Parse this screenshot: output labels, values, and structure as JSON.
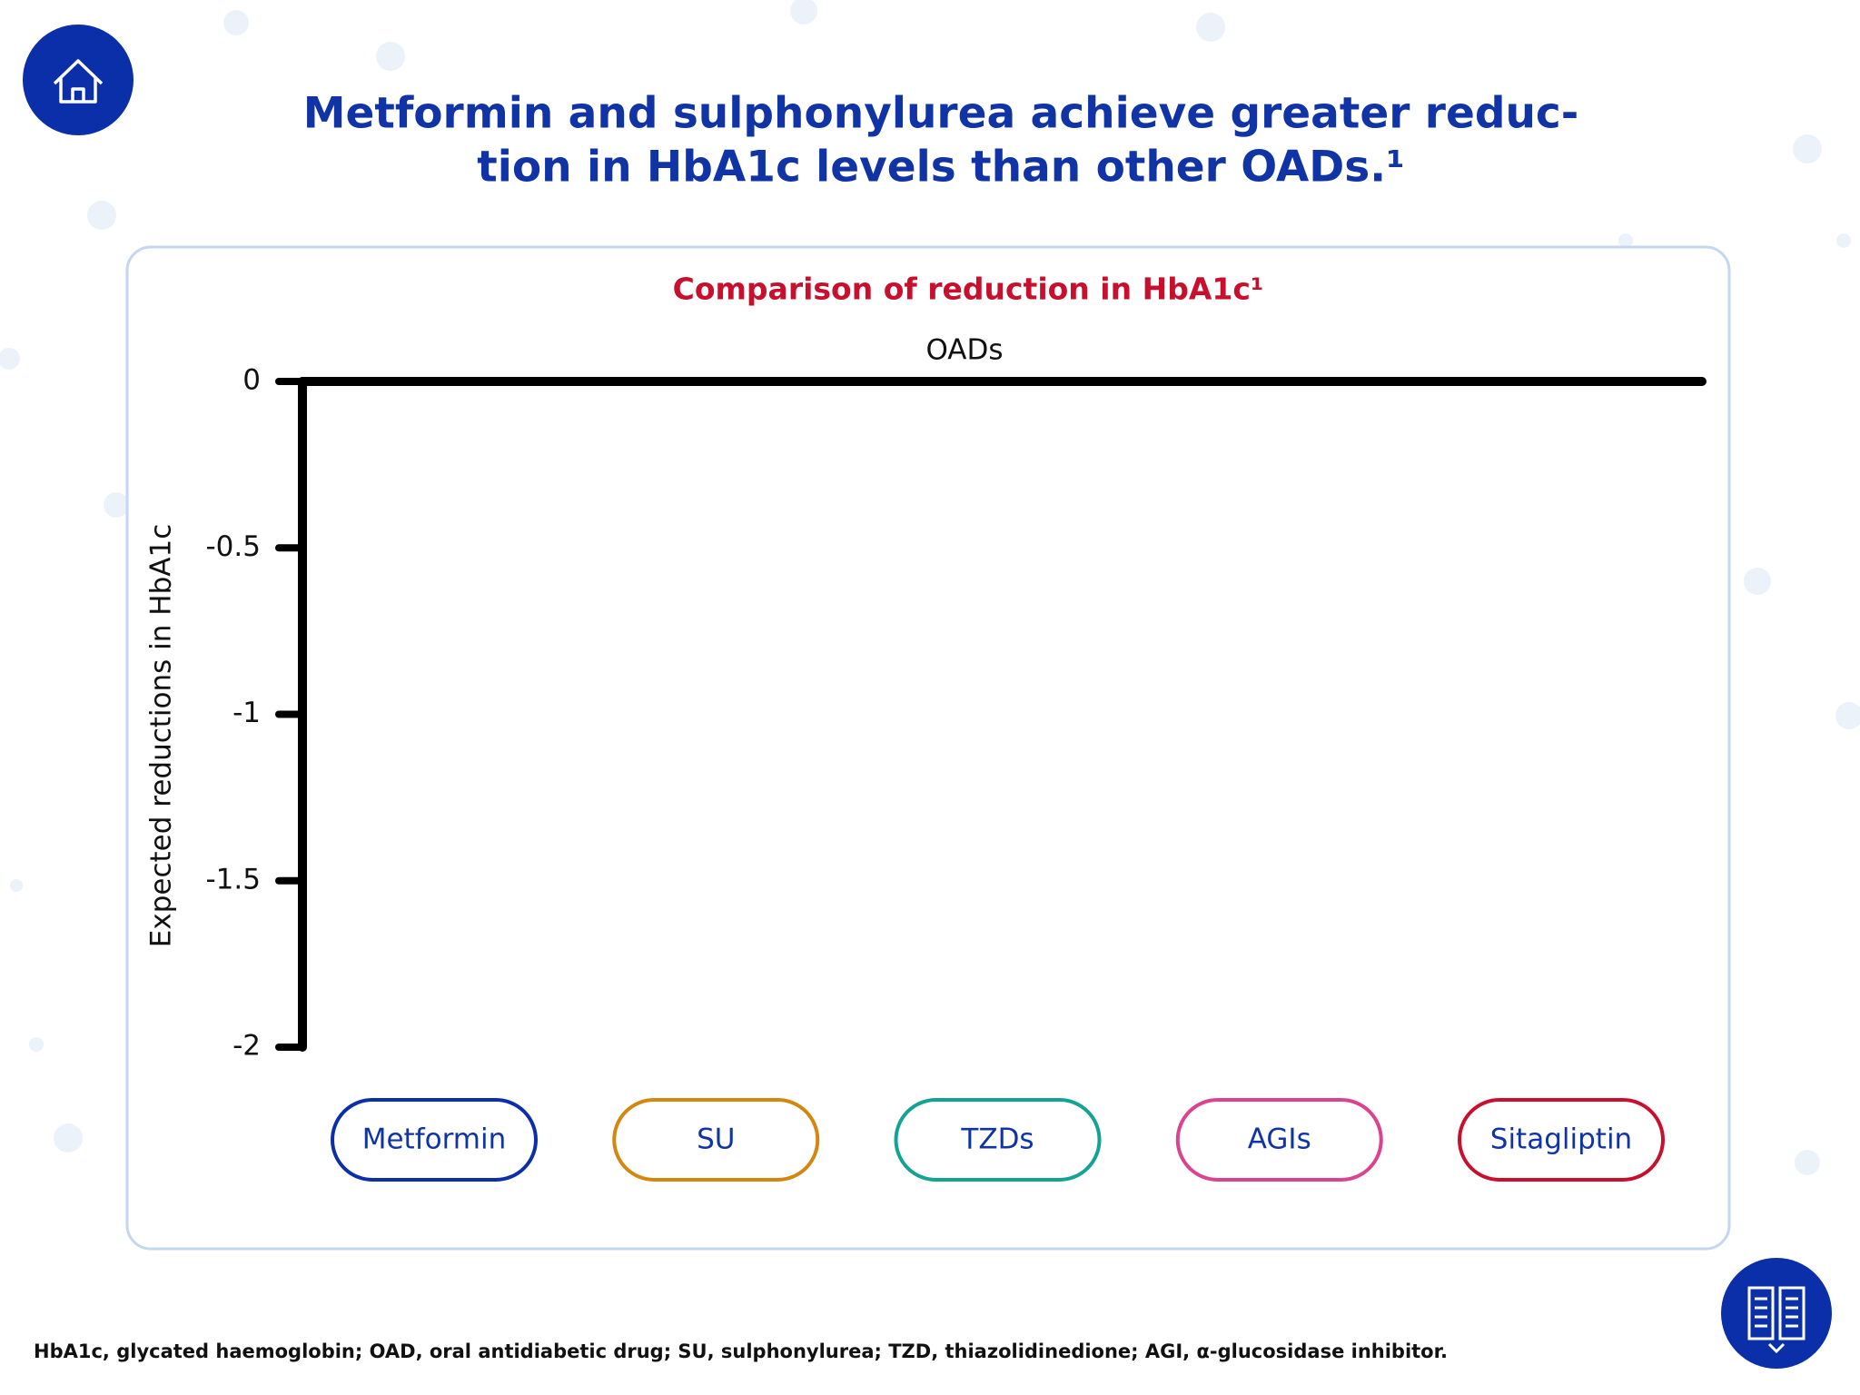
{
  "page": {
    "title_lines": [
      "Metformin and sulphonylurea achieve greater reduc-",
      "tion in HbA1c levels than other OADs.¹"
    ],
    "footnote": "HbA1c, glycated haemoglobin; OAD, oral antidiabetic drug; SU, sulphonylurea; TZD, thiazolidinedione; AGI, α-glucosidase inhibitor."
  },
  "chart_data": {
    "type": "bar",
    "title": "Comparison of reduction in HbA1c¹",
    "x_label": "OADs",
    "y_label": "Expected reductions in HbA1c",
    "categories": [
      "Metformin",
      "SU",
      "TZDs",
      "AGIs",
      "Sitagliptin"
    ],
    "category_colors": [
      "#0b2fa8",
      "#d4870f",
      "#13a393",
      "#d94390",
      "#c8102e"
    ],
    "ylim": [
      -2,
      0
    ],
    "yticks": [
      0,
      -0.5,
      -1,
      -1.5,
      -2
    ]
  }
}
